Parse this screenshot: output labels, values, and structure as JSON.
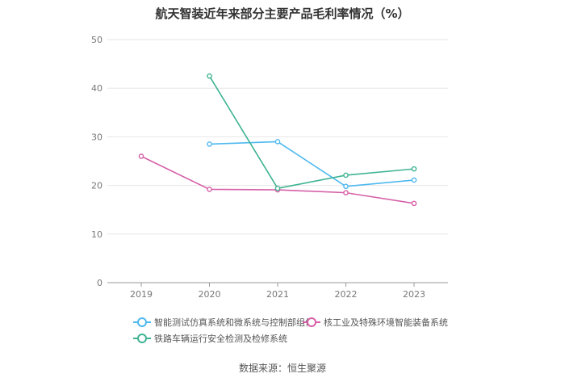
{
  "title": "航天智装近年来部分主要产品毛利率情况（%）",
  "source": "数据来源：恒生聚源",
  "chart_data": {
    "type": "line",
    "categories": [
      "2019",
      "2020",
      "2021",
      "2022",
      "2023"
    ],
    "ylim": [
      0,
      50
    ],
    "yticks": [
      "0",
      "10",
      "20",
      "30",
      "40",
      "50"
    ],
    "grid": true,
    "legend_position": "bottom",
    "series": [
      {
        "name": "智能测试仿真系统和微系统与控制部组件",
        "color": "#4db8ef",
        "values": [
          null,
          28.5,
          29.0,
          19.8,
          21.1
        ]
      },
      {
        "name": "核工业及特殊环境智能装备系统",
        "color": "#d660a8",
        "values": [
          26.0,
          19.2,
          19.1,
          18.5,
          16.3
        ]
      },
      {
        "name": "铁路车辆运行安全检测及检修系统",
        "color": "#3fb393",
        "values": [
          null,
          42.5,
          19.4,
          22.1,
          23.4
        ]
      }
    ]
  }
}
